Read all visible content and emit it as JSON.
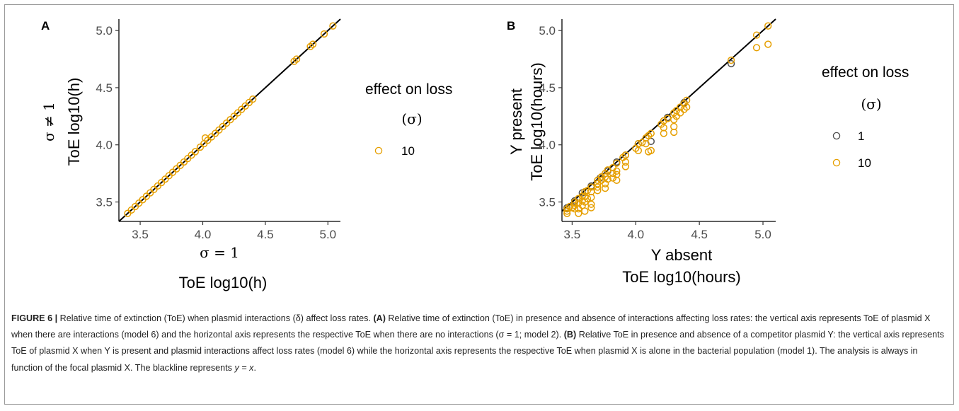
{
  "chart_data": [
    {
      "panel": "A",
      "type": "scatter",
      "xlim": [
        3.33,
        5.1
      ],
      "ylim": [
        3.33,
        5.1
      ],
      "xticks": [
        "3.5",
        "4.0",
        "4.5",
        "5.0"
      ],
      "yticks": [
        "3.5",
        "4.0",
        "4.5",
        "5.0"
      ],
      "xlabel_line1": "σ = 1",
      "xlabel_line2": "ToE log10(h)",
      "ylabel_line1": "σ ≠ 1",
      "ylabel_line2": "ToE log10(h)",
      "reference_line": "y = x",
      "legend": {
        "title": "effect on loss",
        "subtitle": "(σ)",
        "entries": [
          {
            "label": "10",
            "color": "#E69F00"
          }
        ]
      },
      "series": [
        {
          "legend": "10",
          "color": "#E69F00",
          "points": [
            [
              3.4,
              3.4
            ],
            [
              3.43,
              3.43
            ],
            [
              3.46,
              3.46
            ],
            [
              3.49,
              3.49
            ],
            [
              3.52,
              3.52
            ],
            [
              3.55,
              3.55
            ],
            [
              3.58,
              3.58
            ],
            [
              3.61,
              3.61
            ],
            [
              3.64,
              3.64
            ],
            [
              3.67,
              3.67
            ],
            [
              3.7,
              3.7
            ],
            [
              3.73,
              3.73
            ],
            [
              3.76,
              3.76
            ],
            [
              3.79,
              3.79
            ],
            [
              3.82,
              3.82
            ],
            [
              3.85,
              3.85
            ],
            [
              3.88,
              3.88
            ],
            [
              3.91,
              3.91
            ],
            [
              3.94,
              3.94
            ],
            [
              3.98,
              3.98
            ],
            [
              4.01,
              4.01
            ],
            [
              4.04,
              4.04
            ],
            [
              4.07,
              4.07
            ],
            [
              4.1,
              4.1
            ],
            [
              4.13,
              4.13
            ],
            [
              4.16,
              4.16
            ],
            [
              4.19,
              4.19
            ],
            [
              4.22,
              4.22
            ],
            [
              4.25,
              4.25
            ],
            [
              4.28,
              4.28
            ],
            [
              4.31,
              4.31
            ],
            [
              4.34,
              4.34
            ],
            [
              4.37,
              4.37
            ],
            [
              4.4,
              4.4
            ],
            [
              4.02,
              4.06
            ],
            [
              4.73,
              4.73
            ],
            [
              4.75,
              4.75
            ],
            [
              4.86,
              4.86
            ],
            [
              4.88,
              4.88
            ],
            [
              4.97,
              4.97
            ],
            [
              5.04,
              5.04
            ]
          ]
        }
      ]
    },
    {
      "panel": "B",
      "type": "scatter",
      "xlim": [
        3.42,
        5.1
      ],
      "ylim": [
        3.33,
        5.1
      ],
      "xticks": [
        "3.5",
        "4.0",
        "4.5",
        "5.0"
      ],
      "yticks": [
        "3.5",
        "4.0",
        "4.5",
        "5.0"
      ],
      "xlabel_line1": "Y absent",
      "xlabel_line2": "ToE log10(hours)",
      "ylabel_line1": "Y present",
      "ylabel_line2": "ToE log10(hours)",
      "reference_line": "y = x",
      "legend": {
        "title": "effect on loss",
        "subtitle": "(σ)",
        "entries": [
          {
            "label": "1",
            "color": "#4d4d4d"
          },
          {
            "label": "10",
            "color": "#E69F00"
          }
        ]
      },
      "series": [
        {
          "legend": "1",
          "color": "#4d4d4d",
          "points": [
            [
              3.46,
              3.45
            ],
            [
              3.52,
              3.51
            ],
            [
              3.58,
              3.58
            ],
            [
              3.65,
              3.64
            ],
            [
              3.72,
              3.71
            ],
            [
              3.78,
              3.77
            ],
            [
              3.85,
              3.85
            ],
            [
              3.92,
              3.91
            ],
            [
              4.02,
              4.01
            ],
            [
              4.12,
              4.03
            ],
            [
              4.25,
              4.24
            ],
            [
              4.38,
              4.37
            ],
            [
              4.75,
              4.71
            ]
          ]
        },
        {
          "legend": "10",
          "color": "#E69F00",
          "points": [
            [
              3.46,
              3.44
            ],
            [
              3.46,
              3.42
            ],
            [
              3.46,
              3.4
            ],
            [
              3.48,
              3.46
            ],
            [
              3.5,
              3.45
            ],
            [
              3.52,
              3.5
            ],
            [
              3.52,
              3.47
            ],
            [
              3.52,
              3.44
            ],
            [
              3.55,
              3.53
            ],
            [
              3.55,
              3.49
            ],
            [
              3.55,
              3.44
            ],
            [
              3.55,
              3.4
            ],
            [
              3.58,
              3.55
            ],
            [
              3.58,
              3.51
            ],
            [
              3.58,
              3.47
            ],
            [
              3.6,
              3.59
            ],
            [
              3.6,
              3.55
            ],
            [
              3.6,
              3.5
            ],
            [
              3.6,
              3.42
            ],
            [
              3.62,
              3.6
            ],
            [
              3.62,
              3.53
            ],
            [
              3.65,
              3.63
            ],
            [
              3.65,
              3.59
            ],
            [
              3.65,
              3.54
            ],
            [
              3.65,
              3.48
            ],
            [
              3.65,
              3.45
            ],
            [
              3.7,
              3.69
            ],
            [
              3.7,
              3.66
            ],
            [
              3.7,
              3.63
            ],
            [
              3.7,
              3.6
            ],
            [
              3.73,
              3.72
            ],
            [
              3.73,
              3.69
            ],
            [
              3.76,
              3.75
            ],
            [
              3.76,
              3.72
            ],
            [
              3.76,
              3.66
            ],
            [
              3.76,
              3.62
            ],
            [
              3.78,
              3.78
            ],
            [
              3.78,
              3.7
            ],
            [
              3.82,
              3.8
            ],
            [
              3.82,
              3.75
            ],
            [
              3.82,
              3.71
            ],
            [
              3.85,
              3.84
            ],
            [
              3.85,
              3.77
            ],
            [
              3.85,
              3.74
            ],
            [
              3.85,
              3.69
            ],
            [
              3.9,
              3.89
            ],
            [
              3.92,
              3.91
            ],
            [
              3.92,
              3.85
            ],
            [
              3.92,
              3.81
            ],
            [
              4.0,
              3.97
            ],
            [
              4.02,
              4.01
            ],
            [
              4.02,
              3.95
            ],
            [
              4.05,
              4.02
            ],
            [
              4.08,
              4.06
            ],
            [
              4.08,
              4.01
            ],
            [
              4.1,
              4.08
            ],
            [
              4.1,
              3.94
            ],
            [
              4.12,
              4.1
            ],
            [
              4.12,
              3.95
            ],
            [
              4.2,
              4.18
            ],
            [
              4.22,
              4.21
            ],
            [
              4.22,
              4.15
            ],
            [
              4.22,
              4.1
            ],
            [
              4.25,
              4.23
            ],
            [
              4.3,
              4.28
            ],
            [
              4.3,
              4.22
            ],
            [
              4.3,
              4.16
            ],
            [
              4.3,
              4.11
            ],
            [
              4.32,
              4.3
            ],
            [
              4.32,
              4.25
            ],
            [
              4.35,
              4.33
            ],
            [
              4.35,
              4.28
            ],
            [
              4.38,
              4.36
            ],
            [
              4.38,
              4.31
            ],
            [
              4.4,
              4.39
            ],
            [
              4.4,
              4.33
            ],
            [
              4.75,
              4.74
            ],
            [
              4.95,
              4.96
            ],
            [
              4.95,
              4.85
            ],
            [
              5.04,
              5.04
            ],
            [
              5.04,
              4.88
            ]
          ]
        }
      ]
    }
  ],
  "figure_labels": {
    "panel_a": "A",
    "panel_b": "B"
  },
  "caption": {
    "prefix": "FIGURE 6 |",
    "text_1": " Relative time of extinction (ToE) when plasmid interactions (δ) affect loss rates. ",
    "bold_a": "(A)",
    "text_2": " Relative time of extinction (ToE) in presence and absence of interactions affecting loss rates: the vertical axis represents ToE of plasmid X when there are interactions (model 6) and the horizontal axis represents the respective ToE when there are no interactions (σ = 1; model 2). ",
    "bold_b": "(B)",
    "text_3": " Relative ToE in presence and absence of a competitor plasmid Y: the vertical axis represents ToE of plasmid X when Y is present and plasmid interactions affect loss rates (model 6) while the horizontal axis represents the respective ToE when plasmid X is alone in the bacterial population (model 1). The analysis is always in function of the focal plasmid X. The blackline represents ",
    "italic_eq": "y = x",
    "text_4": "."
  }
}
